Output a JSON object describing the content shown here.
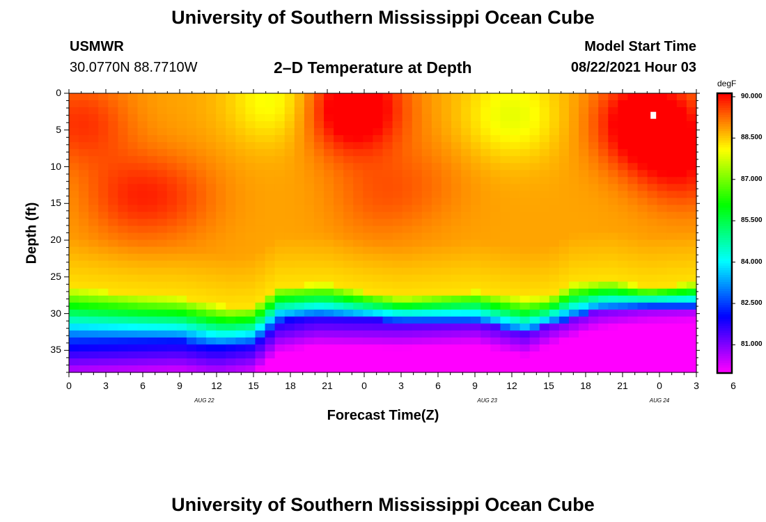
{
  "page_title": "University of Southern Mississippi Ocean Cube",
  "footer_title": "University of Southern Mississippi Ocean Cube",
  "station": {
    "name": "USMWR",
    "coords": "30.0770N  88.7710W"
  },
  "model": {
    "label": "Model Start Time",
    "time": "08/22/2021 Hour 03"
  },
  "chart_data": {
    "type": "heatmap",
    "title": "2–D Temperature at Depth",
    "xlabel": "Forecast Time(Z)",
    "ylabel": "Depth (ft)",
    "x_range_hours": [
      0,
      51
    ],
    "y_range_ft": [
      0,
      38
    ],
    "x_tick_labels": [
      "0",
      "3",
      "6",
      "9",
      "12",
      "15",
      "18",
      "21",
      "0",
      "3",
      "6",
      "9",
      "12",
      "15",
      "18",
      "21",
      "0",
      "3",
      "6"
    ],
    "y_ticks": [
      "0",
      "5",
      "10",
      "15",
      "20",
      "25",
      "30",
      "35"
    ],
    "date_labels": [
      {
        "text": "AUG  22",
        "hour": 11
      },
      {
        "text": "AUG  23",
        "hour": 34
      },
      {
        "text": "AUG  24",
        "hour": 48
      }
    ],
    "colorbar": {
      "unit": "degF",
      "range": [
        80.0,
        90.1
      ],
      "tick_values": [
        90.0,
        88.5,
        87.0,
        85.5,
        84.0,
        82.5,
        81.0
      ],
      "tick_labels": [
        "90.000",
        "88.500",
        "87.000",
        "85.500",
        "84.000",
        "82.500",
        "81.000"
      ]
    },
    "thermocline_depth_ft": [
      {
        "hour": 0,
        "depth": 26.5
      },
      {
        "hour": 6,
        "depth": 27.5
      },
      {
        "hour": 9,
        "depth": 27.8
      },
      {
        "hour": 13,
        "depth": 29.2
      },
      {
        "hour": 15,
        "depth": 29.0
      },
      {
        "hour": 17,
        "depth": 26.3
      },
      {
        "hour": 21,
        "depth": 26.0
      },
      {
        "hour": 24,
        "depth": 27.0
      },
      {
        "hour": 27,
        "depth": 27.8
      },
      {
        "hour": 33,
        "depth": 27.0
      },
      {
        "hour": 37,
        "depth": 28.0
      },
      {
        "hour": 39,
        "depth": 27.8
      },
      {
        "hour": 41,
        "depth": 26.0
      },
      {
        "hour": 44,
        "depth": 25.5
      },
      {
        "hour": 47,
        "depth": 26.5
      },
      {
        "hour": 51,
        "depth": 25.8
      }
    ],
    "deep_layer_depth_ft": [
      {
        "hour": 0,
        "depth": 33.5
      },
      {
        "hour": 9,
        "depth": 33.6
      },
      {
        "hour": 12,
        "depth": 34.5
      },
      {
        "hour": 15,
        "depth": 34.0
      },
      {
        "hour": 17,
        "depth": 31.0
      },
      {
        "hour": 20,
        "depth": 30.3
      },
      {
        "hour": 27,
        "depth": 31.0
      },
      {
        "hour": 33,
        "depth": 31.0
      },
      {
        "hour": 37,
        "depth": 32.8
      },
      {
        "hour": 40,
        "depth": 31.0
      },
      {
        "hour": 43,
        "depth": 29.5
      },
      {
        "hour": 47,
        "depth": 29.0
      },
      {
        "hour": 51,
        "depth": 29.0
      }
    ],
    "surface_warm_spots": [
      {
        "hour": 1,
        "depth": 4,
        "amp": 0.9
      },
      {
        "hour": 5,
        "depth": 14,
        "amp": 0.8
      },
      {
        "hour": 9,
        "depth": 14,
        "amp": 0.5
      },
      {
        "hour": 23,
        "depth": 2,
        "amp": 2.0
      },
      {
        "hour": 25,
        "depth": 14,
        "amp": 0.5
      },
      {
        "hour": 29,
        "depth": 12,
        "amp": 0.3
      },
      {
        "hour": 47,
        "depth": 4,
        "amp": 2.0
      },
      {
        "hour": 50,
        "depth": 10,
        "amp": 1.0
      }
    ],
    "surface_cool_spots": [
      {
        "hour": 17,
        "depth": 1,
        "amp": 0.9
      },
      {
        "hour": 36,
        "depth": 3,
        "amp": 0.9
      }
    ],
    "max_marker": {
      "hour": 47.5,
      "depth": 3
    }
  }
}
